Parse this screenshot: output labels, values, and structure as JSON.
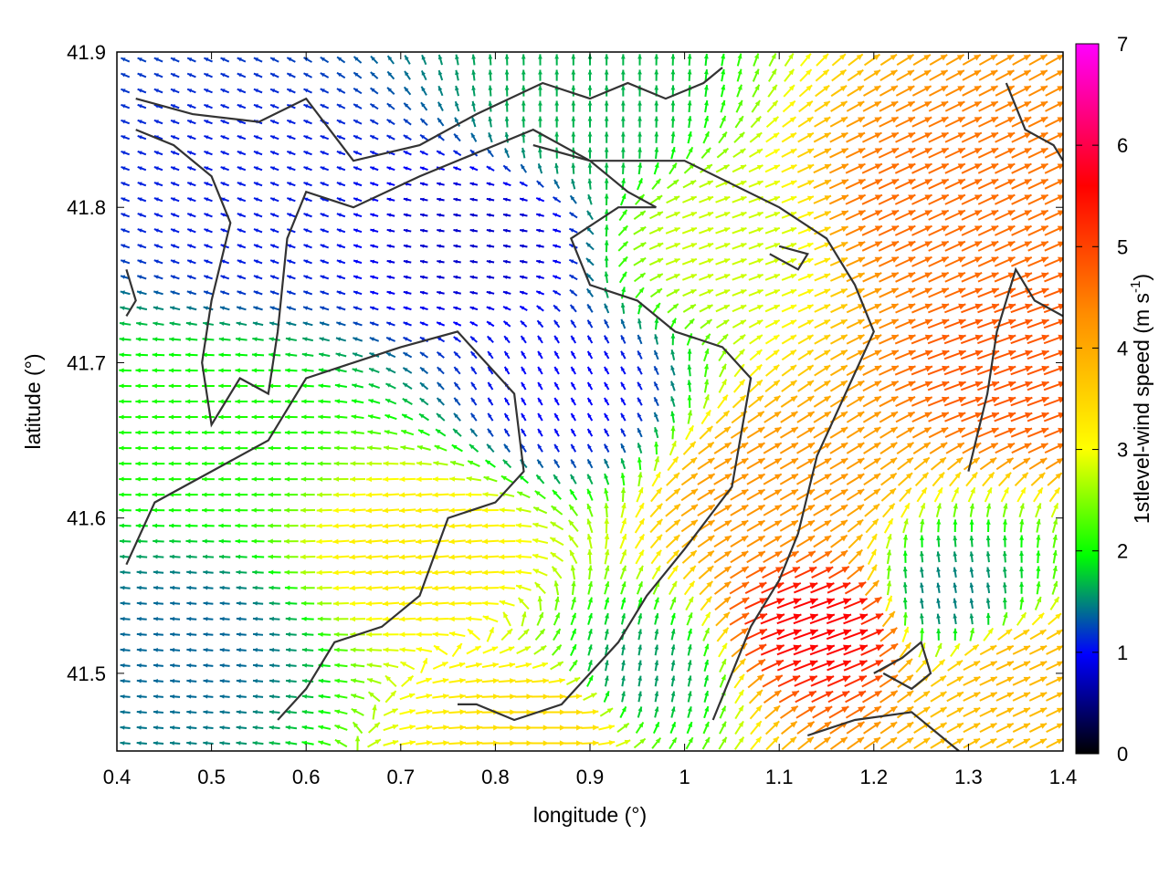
{
  "chart_data": {
    "type": "vector-field",
    "xlabel": "longitude (°)",
    "ylabel": "latitude (°)",
    "xlim": [
      0.4,
      1.4
    ],
    "ylim": [
      41.45,
      41.9
    ],
    "xticks": [
      "0.4",
      "0.5",
      "0.6",
      "0.7",
      "0.8",
      "0.9",
      "1",
      "1.1",
      "1.2",
      "1.3",
      "1.4"
    ],
    "yticks": [
      "41.5",
      "41.6",
      "41.7",
      "41.8",
      "41.9"
    ],
    "colorbar": {
      "label_main": "1stlevel-wind speed (m s",
      "label_sup": "-1",
      "label_close": ")",
      "range": [
        0,
        7
      ],
      "ticks": [
        "0",
        "1",
        "2",
        "3",
        "4",
        "5",
        "6",
        "7"
      ],
      "palette": [
        "#000000",
        "#0000ff",
        "#00ff00",
        "#ffff00",
        "#ff8c00",
        "#ff0000",
        "#ff00ff"
      ]
    },
    "contour_color": "#333333",
    "regions": [
      {
        "lon": 0.55,
        "lat": 41.8,
        "speed": 1.1,
        "dir_deg": 160
      },
      {
        "lon": 0.78,
        "lat": 41.78,
        "speed": 0.8,
        "dir_deg": 170
      },
      {
        "lon": 0.9,
        "lat": 41.86,
        "speed": 1.7,
        "dir_deg": 90
      },
      {
        "lon": 1.05,
        "lat": 41.78,
        "speed": 2.8,
        "dir_deg": 20
      },
      {
        "lon": 1.25,
        "lat": 41.8,
        "speed": 4.6,
        "dir_deg": 25
      },
      {
        "lon": 1.35,
        "lat": 41.7,
        "speed": 4.8,
        "dir_deg": 20
      },
      {
        "lon": 0.5,
        "lat": 41.65,
        "speed": 2.1,
        "dir_deg": 180
      },
      {
        "lon": 0.72,
        "lat": 41.58,
        "speed": 3.2,
        "dir_deg": 185
      },
      {
        "lon": 0.48,
        "lat": 41.52,
        "speed": 1.4,
        "dir_deg": 175
      },
      {
        "lon": 0.88,
        "lat": 41.68,
        "speed": 1.0,
        "dir_deg": 120
      },
      {
        "lon": 1.1,
        "lat": 41.62,
        "speed": 4.2,
        "dir_deg": 30
      },
      {
        "lon": 1.15,
        "lat": 41.53,
        "speed": 5.6,
        "dir_deg": 20
      },
      {
        "lon": 1.28,
        "lat": 41.55,
        "speed": 1.5,
        "dir_deg": 100
      },
      {
        "lon": 1.35,
        "lat": 41.5,
        "speed": 3.8,
        "dir_deg": 25
      },
      {
        "lon": 0.95,
        "lat": 41.5,
        "speed": 1.6,
        "dir_deg": 80
      },
      {
        "lon": 0.86,
        "lat": 41.47,
        "speed": 3.4,
        "dir_deg": 0
      }
    ],
    "contours": [
      [
        [
          0.42,
          41.87
        ],
        [
          0.48,
          41.86
        ],
        [
          0.55,
          41.855
        ],
        [
          0.6,
          41.87
        ],
        [
          0.65,
          41.83
        ],
        [
          0.72,
          41.84
        ],
        [
          0.78,
          41.86
        ],
        [
          0.85,
          41.88
        ],
        [
          0.9,
          41.87
        ],
        [
          0.94,
          41.88
        ],
        [
          0.98,
          41.87
        ],
        [
          1.02,
          41.88
        ],
        [
          1.04,
          41.89
        ]
      ],
      [
        [
          0.42,
          41.85
        ],
        [
          0.46,
          41.84
        ],
        [
          0.5,
          41.82
        ],
        [
          0.52,
          41.79
        ],
        [
          0.5,
          41.74
        ],
        [
          0.49,
          41.7
        ],
        [
          0.5,
          41.66
        ],
        [
          0.53,
          41.69
        ],
        [
          0.56,
          41.68
        ],
        [
          0.57,
          41.72
        ],
        [
          0.58,
          41.78
        ],
        [
          0.6,
          41.81
        ],
        [
          0.65,
          41.8
        ],
        [
          0.72,
          41.82
        ],
        [
          0.8,
          41.84
        ],
        [
          0.84,
          41.85
        ],
        [
          0.9,
          41.83
        ],
        [
          0.94,
          41.81
        ],
        [
          0.97,
          41.8
        ]
      ],
      [
        [
          0.97,
          41.8
        ],
        [
          0.93,
          41.8
        ],
        [
          0.88,
          41.78
        ],
        [
          0.9,
          41.75
        ],
        [
          0.95,
          41.74
        ],
        [
          0.99,
          41.72
        ],
        [
          1.04,
          41.71
        ],
        [
          1.07,
          41.69
        ],
        [
          1.05,
          41.62
        ],
        [
          1.0,
          41.58
        ],
        [
          0.96,
          41.55
        ],
        [
          0.93,
          41.52
        ],
        [
          0.9,
          41.5
        ],
        [
          0.87,
          41.48
        ],
        [
          0.82,
          41.47
        ],
        [
          0.78,
          41.48
        ],
        [
          0.76,
          41.48
        ]
      ],
      [
        [
          0.84,
          41.84
        ],
        [
          0.9,
          41.83
        ],
        [
          1.0,
          41.83
        ],
        [
          1.1,
          41.8
        ],
        [
          1.15,
          41.78
        ],
        [
          1.18,
          41.75
        ],
        [
          1.2,
          41.72
        ],
        [
          1.17,
          41.68
        ],
        [
          1.14,
          41.64
        ],
        [
          1.12,
          41.59
        ],
        [
          1.1,
          41.56
        ],
        [
          1.07,
          41.53
        ],
        [
          1.05,
          41.5
        ],
        [
          1.03,
          41.47
        ]
      ],
      [
        [
          0.41,
          41.57
        ],
        [
          0.44,
          41.61
        ],
        [
          0.5,
          41.63
        ],
        [
          0.56,
          41.65
        ],
        [
          0.6,
          41.69
        ],
        [
          0.65,
          41.7
        ],
        [
          0.7,
          41.71
        ],
        [
          0.76,
          41.72
        ],
        [
          0.79,
          41.7
        ],
        [
          0.82,
          41.68
        ],
        [
          0.83,
          41.63
        ],
        [
          0.8,
          41.61
        ],
        [
          0.75,
          41.6
        ],
        [
          0.72,
          41.55
        ],
        [
          0.68,
          41.53
        ],
        [
          0.63,
          41.52
        ],
        [
          0.6,
          41.49
        ],
        [
          0.57,
          41.47
        ]
      ],
      [
        [
          0.41,
          41.76
        ],
        [
          0.42,
          41.74
        ],
        [
          0.41,
          41.73
        ]
      ],
      [
        [
          1.09,
          41.77
        ],
        [
          1.12,
          41.76
        ],
        [
          1.13,
          41.77
        ],
        [
          1.1,
          41.775
        ]
      ],
      [
        [
          1.2,
          41.5
        ],
        [
          1.23,
          41.51
        ],
        [
          1.25,
          41.52
        ],
        [
          1.26,
          41.5
        ],
        [
          1.24,
          41.49
        ],
        [
          1.21,
          41.5
        ]
      ],
      [
        [
          1.13,
          41.46
        ],
        [
          1.18,
          41.47
        ],
        [
          1.24,
          41.475
        ],
        [
          1.27,
          41.46
        ],
        [
          1.29,
          41.45
        ]
      ],
      [
        [
          1.34,
          41.88
        ],
        [
          1.36,
          41.85
        ],
        [
          1.39,
          41.84
        ],
        [
          1.4,
          41.83
        ]
      ],
      [
        [
          1.3,
          41.63
        ],
        [
          1.32,
          41.68
        ],
        [
          1.33,
          41.72
        ],
        [
          1.35,
          41.76
        ],
        [
          1.37,
          41.74
        ],
        [
          1.4,
          41.73
        ]
      ]
    ]
  }
}
